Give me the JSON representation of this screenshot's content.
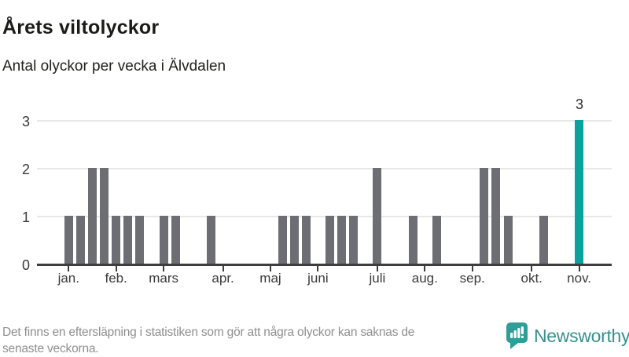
{
  "header": {
    "title": "Årets viltolyckor",
    "subtitle": "Antal olyckor per vecka i Älvdalen"
  },
  "chart_data": {
    "type": "bar",
    "title": "Årets viltolyckor",
    "subtitle": "Antal olyckor per vecka i Älvdalen",
    "x_unit": "vecka",
    "weeks": 44,
    "values": [
      1,
      1,
      2,
      2,
      1,
      1,
      1,
      0,
      1,
      1,
      0,
      0,
      1,
      0,
      0,
      0,
      0,
      0,
      1,
      1,
      1,
      0,
      1,
      1,
      1,
      0,
      2,
      0,
      0,
      1,
      0,
      1,
      0,
      0,
      0,
      2,
      2,
      1,
      0,
      0,
      1,
      0,
      0,
      3
    ],
    "highlight_index": 43,
    "highlight_value_label": "3",
    "y_ticks": [
      "0",
      "1",
      "2",
      "3"
    ],
    "ylim": [
      0,
      3
    ],
    "grid": true,
    "month_ticks": [
      {
        "label": "jan.",
        "week": 1
      },
      {
        "label": "feb.",
        "week": 5
      },
      {
        "label": "mars",
        "week": 9
      },
      {
        "label": "apr.",
        "week": 14
      },
      {
        "label": "maj",
        "week": 18
      },
      {
        "label": "juni",
        "week": 22
      },
      {
        "label": "juli",
        "week": 27
      },
      {
        "label": "aug.",
        "week": 31
      },
      {
        "label": "sep.",
        "week": 35
      },
      {
        "label": "okt.",
        "week": 40
      },
      {
        "label": "nov.",
        "week": 44
      }
    ],
    "colors": {
      "bar": "#6d6d74",
      "highlight": "#0aa29d",
      "grid": "#e8e8e8",
      "axis": "#3d3d3d",
      "tick_label": "#3a3a3a"
    }
  },
  "footer": {
    "note_lines": [
      "Det finns en eftersläpning i statistiken som gör att några olyckor kan saknas de",
      "senaste veckorna."
    ],
    "brand": "Newsworthy",
    "brand_color": "#37918d",
    "logo_color": "#2f9e99"
  }
}
